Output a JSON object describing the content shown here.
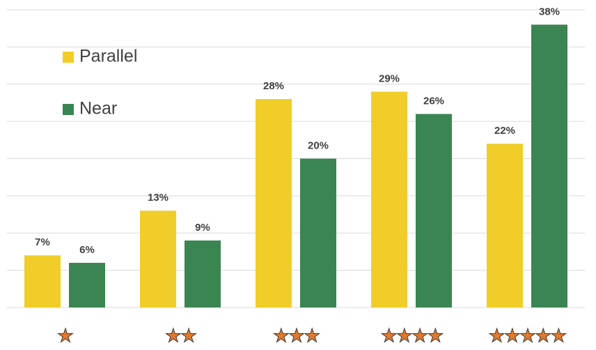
{
  "chart_data": {
    "type": "bar",
    "categories": [
      "★",
      "★★",
      "★★★",
      "★★★★",
      "★★★★★"
    ],
    "series": [
      {
        "name": "Parallel",
        "color": "#f0cd28",
        "values": [
          7,
          13,
          28,
          29,
          22
        ],
        "value_labels": [
          "7%",
          "13%",
          "28%",
          "29%",
          "22%"
        ]
      },
      {
        "name": "Near",
        "color": "#3a8552",
        "values": [
          6,
          9,
          20,
          26,
          38
        ],
        "value_labels": [
          "6%",
          "9%",
          "20%",
          "26%",
          "38%"
        ]
      }
    ],
    "ylim": [
      0,
      40
    ],
    "yticks": [
      0,
      5,
      10,
      15,
      20,
      25,
      30,
      35,
      40
    ],
    "grid": true,
    "legend": "upper left"
  }
}
